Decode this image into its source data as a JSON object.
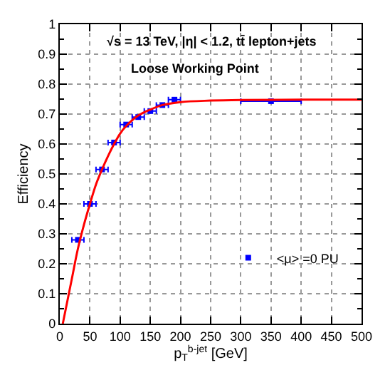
{
  "chart_data": {
    "type": "scatter",
    "xlabel": "p$_{T}$$^{b-jet}$ [GeV]",
    "ylabel": "Efficiency",
    "annotations": [
      "√s = 13 TeV, |η| < 1.2, tt̄ lepton+jets",
      "Loose Working Point"
    ],
    "series": [
      {
        "name": "<μ> =0 PU",
        "color": "#0000ff",
        "x": [
          30,
          50,
          70,
          90,
          110,
          130,
          150,
          170,
          190,
          350
        ],
        "values": [
          0.28,
          0.4,
          0.515,
          0.605,
          0.665,
          0.69,
          0.71,
          0.73,
          0.748,
          0.743
        ],
        "xerrors": [
          10,
          10,
          10,
          10,
          10,
          10,
          10,
          10,
          10,
          50
        ],
        "marker": "square"
      },
      {
        "type": "line",
        "color": "#ff0000",
        "x": [
          5,
          20,
          30,
          40,
          50,
          60,
          70,
          80,
          90,
          100,
          110,
          130,
          150,
          170,
          200,
          250,
          300,
          400,
          500
        ],
        "values": [
          0,
          0.15,
          0.25,
          0.33,
          0.4,
          0.465,
          0.515,
          0.56,
          0.6,
          0.635,
          0.66,
          0.695,
          0.715,
          0.73,
          0.74,
          0.745,
          0.747,
          0.748,
          0.748
        ],
        "marker": "none",
        "line_style": "solid"
      }
    ],
    "xlim": [
      0,
      500
    ],
    "xticks": [
      0,
      50,
      100,
      150,
      200,
      250,
      300,
      350,
      400,
      450,
      500
    ],
    "ylim": [
      0,
      1
    ],
    "yticks": [
      0,
      0.1,
      0.2,
      0.3,
      0.4,
      0.5,
      0.6,
      0.7,
      0.8,
      0.9,
      1
    ],
    "grid": true,
    "legend": "right"
  }
}
